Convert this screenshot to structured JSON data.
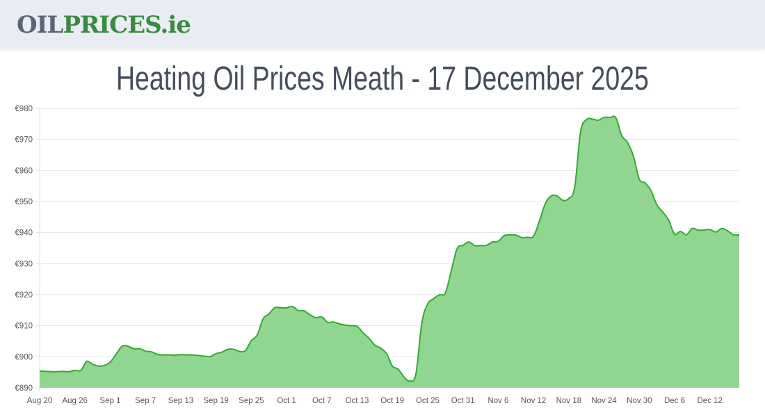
{
  "header": {
    "logo_part1": "OIL",
    "logo_part2": "PRICES.ie"
  },
  "page_title": "Heating Oil Prices Meath - 17 December 2025",
  "colors": {
    "line": "#33aa33",
    "fill": "#90d590",
    "grid": "#e5e5e5",
    "title": "#444d5b"
  },
  "chart_data": {
    "type": "area",
    "title": "",
    "xlabel": "",
    "ylabel": "",
    "ylim": [
      890,
      980
    ],
    "y_ticks": [
      "€890",
      "€900",
      "€910",
      "€920",
      "€930",
      "€940",
      "€950",
      "€960",
      "€970",
      "€980"
    ],
    "x_ticks": [
      "Aug 20",
      "Aug 26",
      "Sep 1",
      "Sep 7",
      "Sep 13",
      "Sep 19",
      "Sep 25",
      "Oct 1",
      "Oct 7",
      "Oct 13",
      "Oct 19",
      "Oct 25",
      "Oct 31",
      "Nov 6",
      "Nov 12",
      "Nov 18",
      "Nov 24",
      "Nov 30",
      "Dec 6",
      "Dec 12"
    ],
    "grid": true,
    "x_range": [
      "2025-08-20",
      "2025-12-17"
    ],
    "values": [
      895.4,
      895.3,
      895.2,
      895.2,
      895.3,
      895.2,
      895.6,
      895.6,
      898.5,
      897.6,
      897.0,
      897.2,
      898.3,
      900.8,
      903.4,
      903.4,
      902.6,
      902.6,
      901.8,
      901.6,
      900.8,
      900.6,
      900.6,
      900.5,
      900.7,
      900.6,
      900.6,
      900.4,
      900.2,
      900.1,
      901.0,
      901.5,
      902.4,
      902.4,
      901.7,
      902.0,
      905.2,
      907.0,
      912.2,
      913.8,
      915.8,
      915.8,
      915.8,
      916.2,
      914.9,
      914.8,
      913.5,
      912.6,
      912.8,
      911.1,
      911.2,
      910.6,
      910.2,
      910.0,
      909.8,
      907.8,
      906.0,
      903.8,
      902.8,
      901.0,
      897.0,
      896.0,
      893.4,
      892.2,
      894.5,
      910.8,
      917.0,
      918.7,
      920.0,
      920.5,
      927.6,
      934.8,
      935.9,
      937.0,
      935.8,
      935.8,
      935.9,
      937.0,
      937.2,
      939.0,
      939.3,
      939.2,
      938.4,
      938.5,
      938.8,
      943.7,
      949.3,
      951.8,
      951.8,
      950.4,
      951.0,
      954.5,
      972.4,
      976.4,
      976.6,
      976.2,
      977.1,
      977.1,
      977.0,
      971.3,
      969.0,
      964.6,
      957.2,
      956.0,
      953.4,
      948.9,
      946.6,
      944.0,
      939.5,
      940.4,
      939.3,
      941.3,
      940.8,
      940.8,
      941.0,
      940.2,
      941.3,
      940.6,
      939.3,
      939.3
    ]
  }
}
